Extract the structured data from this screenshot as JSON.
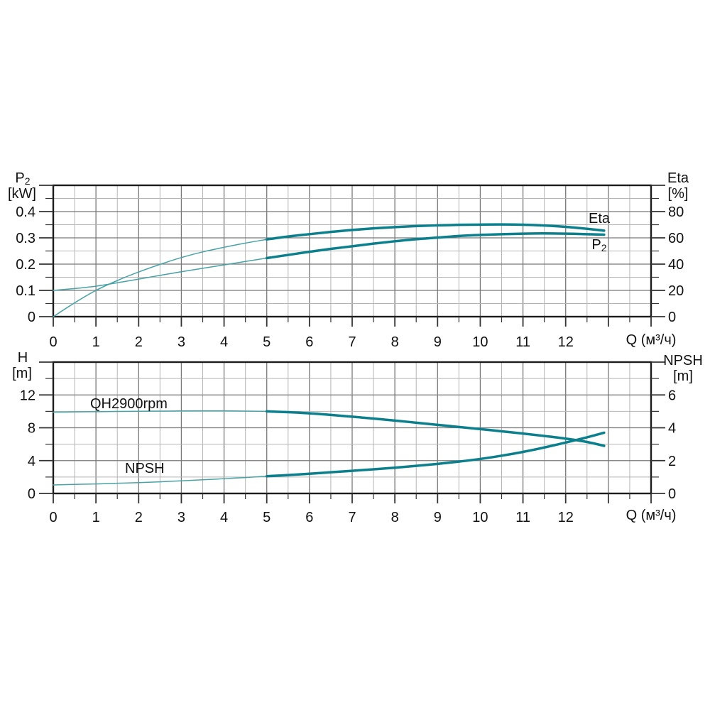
{
  "colors": {
    "curve_bold": "#0c7f8d",
    "curve_thin": "#4aa2a6",
    "grid_minor": "#b5b5b5",
    "grid_major": "#787878",
    "frame": "#1c1c1c",
    "tick": "#333333",
    "text": "#111111",
    "background": "#ffffff"
  },
  "labels": {
    "p2_main": "P",
    "p2_sub": "2",
    "p2_unit": "[kW]",
    "eta": "Eta",
    "eta_unit": "[%]",
    "h": "H",
    "h_unit": "[m]",
    "npsh": "NPSH",
    "npsh_unit": "[m]",
    "q_top": "Q (м³/ч)",
    "q_bottom": "Q (м³/ч)",
    "curve_eta": "Eta",
    "curve_p2_main": "P",
    "curve_p2_sub": "2",
    "curve_qh": "QH2900rpm",
    "curve_npsh": "NPSH"
  },
  "chart_data": [
    {
      "type": "line",
      "title": "Pump power and efficiency vs flow",
      "x_axis": {
        "label": "Q (м³/ч)",
        "min": 0,
        "max": 14,
        "grid_minor_step": 0.5,
        "grid_major_step": 1,
        "labeled_ticks": [
          0,
          1,
          2,
          3,
          4,
          5,
          6,
          7,
          8,
          9,
          10,
          11,
          12
        ]
      },
      "y_left": {
        "label": "P₂",
        "unit": "[kW]",
        "min": 0,
        "max": 0.5,
        "grid_step": 0.05,
        "major_every": 0.1,
        "labeled_ticks": [
          [
            0.4,
            "0.4"
          ],
          [
            0.3,
            "0.3"
          ],
          [
            0.2,
            "0.2"
          ],
          [
            0.1,
            "0.1"
          ],
          [
            0,
            "0"
          ]
        ]
      },
      "y_right": {
        "label": "Eta",
        "unit": "[%]",
        "min": 0,
        "max": 100,
        "tick_step": 10,
        "major_every": 20,
        "labeled_ticks": [
          [
            80,
            "80"
          ],
          [
            60,
            "60"
          ],
          [
            40,
            "40"
          ],
          [
            20,
            "20"
          ],
          [
            0,
            "0"
          ]
        ]
      },
      "series": [
        {
          "name": "Eta",
          "axis": "right",
          "bold_from": 5,
          "x": [
            0,
            0.5,
            1,
            1.5,
            2,
            2.5,
            3,
            3.5,
            4,
            4.5,
            5,
            5.5,
            6,
            6.5,
            7,
            7.5,
            8,
            8.5,
            9,
            9.5,
            10,
            10.5,
            11,
            11.5,
            12,
            12.5,
            12.9
          ],
          "y": [
            0,
            10.5,
            20,
            27.5,
            34,
            39.8,
            45,
            49.3,
            52.8,
            56,
            58.8,
            61,
            62.8,
            64.5,
            66,
            67.2,
            68.2,
            69,
            69.5,
            69.9,
            70.1,
            70.2,
            70,
            69.4,
            68.4,
            66.9,
            65.5
          ]
        },
        {
          "name": "P2",
          "axis": "left",
          "bold_from": 5,
          "x": [
            0,
            0.5,
            1,
            1.5,
            2,
            2.5,
            3,
            3.5,
            4,
            4.5,
            5,
            5.5,
            6,
            6.5,
            7,
            7.5,
            8,
            8.5,
            9,
            9.5,
            10,
            10.5,
            11,
            11.5,
            12,
            12.5,
            12.9
          ],
          "y": [
            0.1,
            0.107,
            0.116,
            0.129,
            0.143,
            0.157,
            0.171,
            0.184,
            0.197,
            0.21,
            0.223,
            0.235,
            0.247,
            0.258,
            0.268,
            0.278,
            0.287,
            0.295,
            0.301,
            0.307,
            0.311,
            0.314,
            0.316,
            0.317,
            0.316,
            0.314,
            0.312
          ]
        }
      ]
    },
    {
      "type": "line",
      "title": "Pump head and NPSH vs flow",
      "x_axis": {
        "label": "Q (м³/ч)",
        "min": 0,
        "max": 14,
        "grid_minor_step": 0.5,
        "grid_major_step": 1,
        "labeled_ticks": [
          0,
          1,
          2,
          3,
          4,
          5,
          6,
          7,
          8,
          9,
          10,
          11,
          12
        ]
      },
      "y_left": {
        "label": "H",
        "unit": "[m]",
        "min": 0,
        "max": 16,
        "grid_step": 2,
        "major_every": 4,
        "labeled_ticks": [
          [
            12,
            "12"
          ],
          [
            8,
            "8"
          ],
          [
            4,
            "4"
          ],
          [
            0,
            "0"
          ]
        ]
      },
      "y_right": {
        "label": "NPSH",
        "unit": "[m]",
        "min": 0,
        "max": 8,
        "tick_step": 1,
        "major_every": 2,
        "labeled_ticks": [
          [
            6,
            "6"
          ],
          [
            4,
            "4"
          ],
          [
            2,
            "2"
          ],
          [
            0,
            "0"
          ]
        ]
      },
      "series": [
        {
          "name": "QH2900rpm",
          "axis": "left",
          "bold_from": 5,
          "x": [
            0,
            0.5,
            1,
            1.5,
            2,
            2.5,
            3,
            3.5,
            4,
            4.5,
            5,
            5.5,
            6,
            6.5,
            7,
            7.5,
            8,
            8.5,
            9,
            9.5,
            10,
            10.5,
            11,
            11.5,
            12,
            12.5,
            12.9
          ],
          "y": [
            9.9,
            9.93,
            9.96,
            9.99,
            10.01,
            10.03,
            10.05,
            10.06,
            10.06,
            10.03,
            10.0,
            9.9,
            9.76,
            9.57,
            9.35,
            9.12,
            8.88,
            8.62,
            8.36,
            8.1,
            7.84,
            7.57,
            7.3,
            7.0,
            6.68,
            6.27,
            5.8
          ]
        },
        {
          "name": "NPSH",
          "axis": "right",
          "bold_from": 5,
          "x": [
            0,
            0.5,
            1,
            1.5,
            2,
            2.5,
            3,
            3.5,
            4,
            4.5,
            5,
            5.5,
            6,
            6.5,
            7,
            7.5,
            8,
            8.5,
            9,
            9.5,
            10,
            10.5,
            11,
            11.5,
            12,
            12.5,
            12.9
          ],
          "y": [
            0.52,
            0.55,
            0.58,
            0.62,
            0.66,
            0.71,
            0.77,
            0.83,
            0.9,
            0.97,
            1.05,
            1.12,
            1.2,
            1.29,
            1.38,
            1.47,
            1.57,
            1.68,
            1.8,
            1.94,
            2.1,
            2.3,
            2.53,
            2.8,
            3.1,
            3.42,
            3.7
          ]
        }
      ]
    }
  ]
}
